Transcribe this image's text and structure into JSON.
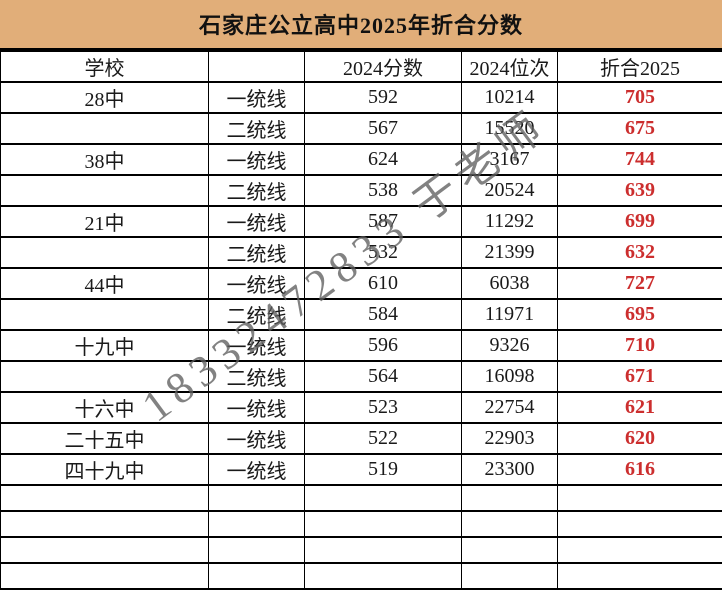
{
  "title": "石家庄公立高中2025年折合分数",
  "colors": {
    "title_bg": "#E1AE79",
    "converted_red": "#CC2E2E",
    "watermark_gray": "#5F5F5F"
  },
  "watermark": {
    "text": "18332472833 于老师"
  },
  "table": {
    "headers": {
      "school": "学校",
      "line": "",
      "score": "2024分数",
      "rank": "2024位次",
      "converted": "折合2025"
    },
    "rows": [
      {
        "school": "28中",
        "line": "一统线",
        "score": "592",
        "rank": "10214",
        "converted": "705"
      },
      {
        "school": "",
        "line": "二统线",
        "score": "567",
        "rank": "15520",
        "converted": "675"
      },
      {
        "school": "38中",
        "line": "一统线",
        "score": "624",
        "rank": "3167",
        "converted": "744"
      },
      {
        "school": "",
        "line": "二统线",
        "score": "538",
        "rank": "20524",
        "converted": "639"
      },
      {
        "school": "21中",
        "line": "一统线",
        "score": "587",
        "rank": "11292",
        "converted": "699"
      },
      {
        "school": "",
        "line": "二统线",
        "score": "532",
        "rank": "21399",
        "converted": "632"
      },
      {
        "school": "44中",
        "line": "一统线",
        "score": "610",
        "rank": "6038",
        "converted": "727"
      },
      {
        "school": "",
        "line": "二统线",
        "score": "584",
        "rank": "11971",
        "converted": "695"
      },
      {
        "school": "十九中",
        "line": "一统线",
        "score": "596",
        "rank": "9326",
        "converted": "710"
      },
      {
        "school": "",
        "line": "二统线",
        "score": "564",
        "rank": "16098",
        "converted": "671"
      },
      {
        "school": "十六中",
        "line": "一统线",
        "score": "523",
        "rank": "22754",
        "converted": "621"
      },
      {
        "school": "二十五中",
        "line": "一统线",
        "score": "522",
        "rank": "22903",
        "converted": "620"
      },
      {
        "school": "四十九中",
        "line": "一统线",
        "score": "519",
        "rank": "23300",
        "converted": "616"
      },
      {
        "school": "",
        "line": "",
        "score": "",
        "rank": "",
        "converted": ""
      },
      {
        "school": "",
        "line": "",
        "score": "",
        "rank": "",
        "converted": ""
      },
      {
        "school": "",
        "line": "",
        "score": "",
        "rank": "",
        "converted": ""
      },
      {
        "school": "",
        "line": "",
        "score": "",
        "rank": "",
        "converted": ""
      }
    ]
  }
}
